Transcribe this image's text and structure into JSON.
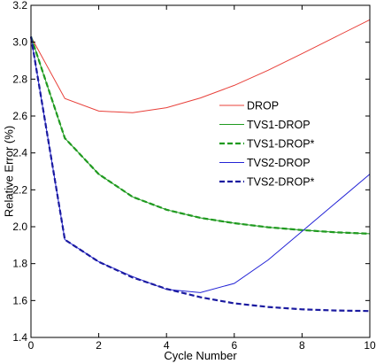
{
  "chart_data": {
    "type": "line",
    "xlabel": "Cycle Number",
    "ylabel": "Relative Error (%)",
    "xlim": [
      0,
      10
    ],
    "ylim": [
      1.4,
      3.2
    ],
    "xticks": [
      "0",
      "2",
      "4",
      "6",
      "8",
      "10"
    ],
    "yticks": [
      "1.4",
      "1.6",
      "1.8",
      "2.0",
      "2.2",
      "2.4",
      "2.6",
      "2.8",
      "3.0",
      "3.2"
    ],
    "grid": false,
    "legend_position": "right",
    "series": [
      {
        "name": "DROP",
        "color": "#e8403a",
        "dash": "solid",
        "x": [
          0,
          1,
          2,
          3,
          4,
          5,
          6,
          7,
          8,
          9,
          10
        ],
        "y": [
          3.03,
          2.695,
          2.627,
          2.618,
          2.645,
          2.698,
          2.766,
          2.848,
          2.938,
          3.03,
          3.122
        ]
      },
      {
        "name": "TVS1-DROP",
        "color": "#1f9a1f",
        "dash": "solid",
        "x": [
          0,
          1,
          2,
          3,
          4,
          5,
          6,
          7,
          8,
          9,
          10
        ],
        "y": [
          3.03,
          2.48,
          2.285,
          2.162,
          2.092,
          2.048,
          2.019,
          1.997,
          1.982,
          1.97,
          1.962
        ]
      },
      {
        "name": "TVS1-DROP*",
        "color": "#1f9a1f",
        "dash": "dashed",
        "x": [
          0,
          1,
          2,
          3,
          4,
          5,
          6,
          7,
          8,
          9,
          10
        ],
        "y": [
          3.03,
          2.48,
          2.285,
          2.162,
          2.092,
          2.048,
          2.019,
          1.997,
          1.982,
          1.97,
          1.962
        ]
      },
      {
        "name": "TVS2-DROP",
        "color": "#2424d6",
        "dash": "solid",
        "x": [
          0,
          1,
          2,
          3,
          4,
          5,
          6,
          7,
          8,
          9,
          10
        ],
        "y": [
          3.03,
          1.93,
          1.81,
          1.73,
          1.66,
          1.643,
          1.693,
          1.82,
          1.975,
          2.13,
          2.285
        ]
      },
      {
        "name": "TVS2-DROP*",
        "color": "#1a1aa0",
        "dash": "dashed",
        "x": [
          0,
          1,
          2,
          3,
          4,
          5,
          6,
          7,
          8,
          9,
          10
        ],
        "y": [
          3.03,
          1.93,
          1.81,
          1.725,
          1.663,
          1.618,
          1.585,
          1.565,
          1.552,
          1.546,
          1.543
        ]
      }
    ]
  }
}
